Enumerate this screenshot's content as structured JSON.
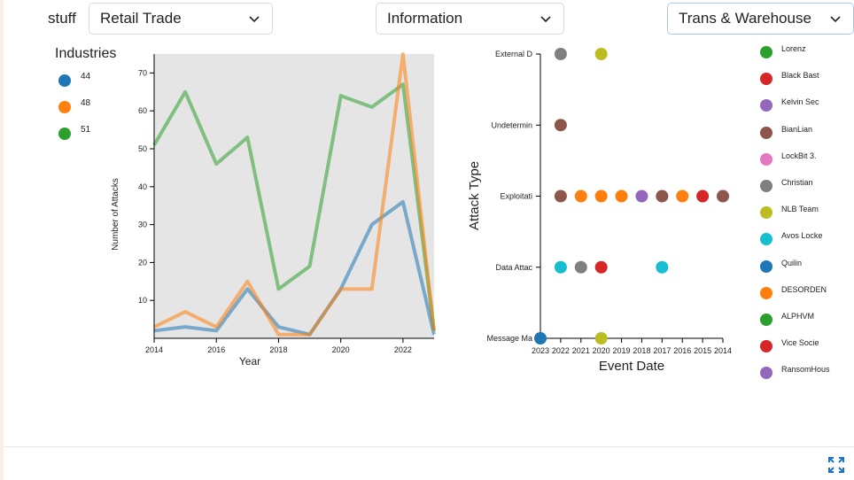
{
  "header": {
    "stuff_label": "stuff",
    "selects": [
      {
        "value": "Retail Trade"
      },
      {
        "value": "Information"
      },
      {
        "value": "Trans & Warehouse"
      }
    ]
  },
  "left_legend": {
    "title": "Industries",
    "items": [
      {
        "label": "44",
        "color": "#1f77b4"
      },
      {
        "label": "48",
        "color": "#ff7f0e"
      },
      {
        "label": "51",
        "color": "#2ca02c"
      }
    ]
  },
  "right_legend": [
    {
      "label": "Lorenz",
      "color": "#2ca02c"
    },
    {
      "label": "Black Bast",
      "color": "#d62728"
    },
    {
      "label": "Kelvin Sec",
      "color": "#9467bd"
    },
    {
      "label": "BianLian",
      "color": "#8c564b"
    },
    {
      "label": "LockBit 3.",
      "color": "#e377c2"
    },
    {
      "label": "Christian",
      "color": "#7f7f7f"
    },
    {
      "label": "NLB Team",
      "color": "#bcbd22"
    },
    {
      "label": "Avos Locke",
      "color": "#17becf"
    },
    {
      "label": "Quilin",
      "color": "#1f77b4"
    },
    {
      "label": "DESORDEN",
      "color": "#ff7f0e"
    },
    {
      "label": "ALPHVM",
      "color": "#2ca02c"
    },
    {
      "label": "Vice Socie",
      "color": "#d62728"
    },
    {
      "label": "RansomHous",
      "color": "#9467bd"
    }
  ],
  "chart_data": [
    {
      "type": "line",
      "title": "",
      "xlabel": "Year",
      "ylabel": "Number of Attacks",
      "xlim": [
        2014,
        2023
      ],
      "ylim": [
        0,
        75
      ],
      "xticks": [
        "2014",
        "2016",
        "2018",
        "2020",
        "2022"
      ],
      "yticks": [
        "10",
        "20",
        "30",
        "40",
        "50",
        "60",
        "70"
      ],
      "x": [
        2014,
        2015,
        2016,
        2017,
        2018,
        2019,
        2020,
        2021,
        2022,
        2023
      ],
      "series": [
        {
          "name": "44",
          "color": "#1f77b4",
          "values": [
            2,
            3,
            2,
            13,
            3,
            1,
            13,
            30,
            36,
            1
          ]
        },
        {
          "name": "48",
          "color": "#ff7f0e",
          "values": [
            3,
            7,
            3,
            15,
            1,
            1,
            13,
            13,
            75,
            2
          ]
        },
        {
          "name": "51",
          "color": "#2ca02c",
          "values": [
            51,
            65,
            46,
            53,
            13,
            19,
            64,
            61,
            67,
            2
          ]
        }
      ]
    },
    {
      "type": "scatter",
      "title": "",
      "xlabel": "Event Date",
      "ylabel": "Attack Type",
      "xticks": [
        "2023",
        "2022",
        "2021",
        "2020",
        "2019",
        "2018",
        "2017",
        "2016",
        "2015",
        "2014"
      ],
      "yticks": [
        "Message Ma",
        "Data Attac",
        "Exploitati",
        "Undetermin",
        "External D"
      ],
      "points": [
        {
          "x": "2022",
          "y": "External D",
          "group": "Christian",
          "color": "#7f7f7f"
        },
        {
          "x": "2020",
          "y": "External D",
          "group": "NLB Team",
          "color": "#bcbd22"
        },
        {
          "x": "2022",
          "y": "Undetermin",
          "group": "BianLian",
          "color": "#8c564b"
        },
        {
          "x": "2022",
          "y": "Exploitati",
          "group": "BianLian",
          "color": "#8c564b"
        },
        {
          "x": "2021",
          "y": "Exploitati",
          "group": "DESORDEN",
          "color": "#ff7f0e"
        },
        {
          "x": "2020",
          "y": "Exploitati",
          "group": "DESORDEN",
          "color": "#ff7f0e"
        },
        {
          "x": "2019",
          "y": "Exploitati",
          "group": "DESORDEN",
          "color": "#ff7f0e"
        },
        {
          "x": "2018",
          "y": "Exploitati",
          "group": "Kelvin Sec",
          "color": "#9467bd"
        },
        {
          "x": "2017",
          "y": "Exploitati",
          "group": "BianLian",
          "color": "#8c564b"
        },
        {
          "x": "2016",
          "y": "Exploitati",
          "group": "DESORDEN",
          "color": "#ff7f0e"
        },
        {
          "x": "2015",
          "y": "Exploitati",
          "group": "Black Bast",
          "color": "#d62728"
        },
        {
          "x": "2014",
          "y": "Exploitati",
          "group": "BianLian",
          "color": "#8c564b"
        },
        {
          "x": "2022",
          "y": "Data Attac",
          "group": "Avos Locke",
          "color": "#17becf"
        },
        {
          "x": "2021",
          "y": "Data Attac",
          "group": "Christian",
          "color": "#7f7f7f"
        },
        {
          "x": "2020",
          "y": "Data Attac",
          "group": "Black Bast",
          "color": "#d62728"
        },
        {
          "x": "2017",
          "y": "Data Attac",
          "group": "Avos Locke",
          "color": "#17becf"
        },
        {
          "x": "2023",
          "y": "Message Ma",
          "group": "Quilin",
          "color": "#1f77b4"
        },
        {
          "x": "2020",
          "y": "Message Ma",
          "group": "NLB Team",
          "color": "#bcbd22"
        }
      ]
    }
  ]
}
